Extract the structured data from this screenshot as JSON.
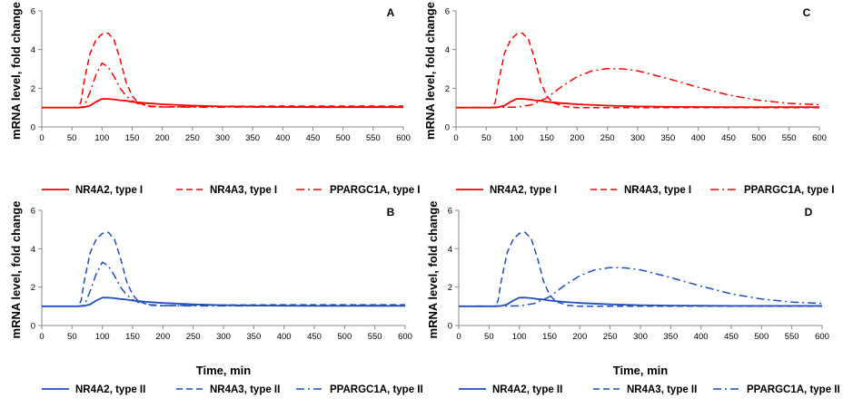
{
  "chart_data": [
    {
      "type": "line",
      "panel_label": "A",
      "ylabel": "mRNA level, fold change",
      "xlabel": "",
      "xlim": [
        0,
        600
      ],
      "ylim": [
        0,
        6
      ],
      "x_ticks": [
        "0",
        "50",
        "100",
        "150",
        "200",
        "250",
        "300",
        "350",
        "400",
        "450",
        "500",
        "550",
        "600"
      ],
      "y_ticks": [
        "0",
        "2",
        "4",
        "6"
      ],
      "grid": false,
      "legend_position": "bottom",
      "series": [
        {
          "name": "NR4A2, type I",
          "color": "#ff0000",
          "dash": "solid",
          "x": [
            0,
            60,
            70,
            80,
            90,
            100,
            110,
            120,
            130,
            140,
            150,
            175,
            200,
            250,
            300,
            350,
            400,
            450,
            500,
            550,
            600
          ],
          "values": [
            1.0,
            1.0,
            1.02,
            1.1,
            1.3,
            1.45,
            1.45,
            1.42,
            1.38,
            1.35,
            1.3,
            1.23,
            1.17,
            1.1,
            1.06,
            1.04,
            1.03,
            1.02,
            1.02,
            1.02,
            1.02
          ]
        },
        {
          "name": "NR4A3, type I",
          "color": "#ff0000",
          "dash": "dashed",
          "x": [
            0,
            60,
            65,
            70,
            80,
            90,
            100,
            110,
            120,
            130,
            140,
            150,
            160,
            180,
            200,
            250,
            300,
            400,
            500,
            600
          ],
          "values": [
            1.0,
            1.0,
            1.3,
            2.3,
            3.8,
            4.5,
            4.8,
            4.85,
            4.5,
            3.5,
            2.3,
            1.6,
            1.25,
            1.05,
            1.03,
            1.05,
            1.07,
            1.08,
            1.08,
            1.08
          ]
        },
        {
          "name": "PPARGC1A, type I",
          "color": "#ff0000",
          "dash": "dashdot",
          "x": [
            0,
            60,
            70,
            80,
            90,
            100,
            110,
            120,
            130,
            140,
            150,
            160,
            180,
            200,
            250,
            300,
            400,
            500,
            600
          ],
          "values": [
            1.0,
            1.0,
            1.05,
            1.8,
            2.7,
            3.3,
            3.1,
            2.6,
            2.0,
            1.6,
            1.35,
            1.2,
            1.08,
            1.04,
            1.02,
            1.02,
            1.03,
            1.04,
            1.05
          ]
        }
      ]
    },
    {
      "type": "line",
      "panel_label": "C",
      "ylabel": "mRNA level, fold change",
      "xlabel": "",
      "xlim": [
        0,
        600
      ],
      "ylim": [
        0,
        6
      ],
      "x_ticks": [
        "0",
        "50",
        "100",
        "150",
        "200",
        "250",
        "300",
        "350",
        "400",
        "450",
        "500",
        "550",
        "600"
      ],
      "y_ticks": [
        "0",
        "2",
        "4",
        "6"
      ],
      "grid": false,
      "legend_position": "bottom",
      "series": [
        {
          "name": "NR4A2, type I",
          "color": "#ff0000",
          "dash": "solid",
          "x": [
            0,
            60,
            70,
            80,
            90,
            100,
            110,
            120,
            130,
            140,
            150,
            175,
            200,
            250,
            300,
            350,
            400,
            450,
            500,
            550,
            600
          ],
          "values": [
            1.0,
            1.0,
            1.02,
            1.1,
            1.3,
            1.45,
            1.45,
            1.42,
            1.38,
            1.35,
            1.3,
            1.23,
            1.17,
            1.1,
            1.06,
            1.04,
            1.03,
            1.02,
            1.02,
            1.02,
            1.02
          ]
        },
        {
          "name": "NR4A3, type I",
          "color": "#ff0000",
          "dash": "dashed",
          "x": [
            0,
            60,
            65,
            70,
            80,
            90,
            100,
            110,
            120,
            130,
            140,
            150,
            160,
            180,
            200,
            250,
            300,
            400,
            500,
            600
          ],
          "values": [
            1.0,
            1.0,
            1.3,
            2.3,
            3.8,
            4.5,
            4.8,
            4.85,
            4.5,
            3.5,
            2.3,
            1.6,
            1.25,
            1.05,
            1.0,
            1.0,
            1.0,
            1.0,
            1.0,
            1.0
          ]
        },
        {
          "name": "PPARGC1A, type I",
          "color": "#ff0000",
          "dash": "dashdot",
          "x": [
            0,
            100,
            125,
            150,
            175,
            200,
            225,
            250,
            275,
            300,
            350,
            400,
            450,
            500,
            550,
            600
          ],
          "values": [
            1.0,
            1.02,
            1.15,
            1.5,
            2.1,
            2.6,
            2.9,
            3.02,
            3.0,
            2.9,
            2.5,
            2.05,
            1.65,
            1.38,
            1.22,
            1.15
          ]
        }
      ]
    },
    {
      "type": "line",
      "panel_label": "B",
      "ylabel": "mRNA level, fold change",
      "xlabel": "Time, min",
      "xlim": [
        0,
        600
      ],
      "ylim": [
        0,
        6
      ],
      "x_ticks": [
        "0",
        "50",
        "100",
        "150",
        "200",
        "250",
        "300",
        "350",
        "400",
        "450",
        "500",
        "550",
        "600"
      ],
      "y_ticks": [
        "0",
        "2",
        "4",
        "6"
      ],
      "grid": false,
      "legend_position": "bottom",
      "series": [
        {
          "name": "NR4A2, type II",
          "color": "#1f4fbf",
          "dash": "solid",
          "x": [
            0,
            60,
            70,
            80,
            90,
            100,
            110,
            120,
            130,
            140,
            150,
            175,
            200,
            250,
            300,
            350,
            400,
            450,
            500,
            550,
            600
          ],
          "values": [
            1.0,
            1.0,
            1.02,
            1.1,
            1.3,
            1.45,
            1.45,
            1.42,
            1.38,
            1.35,
            1.3,
            1.23,
            1.17,
            1.1,
            1.06,
            1.04,
            1.03,
            1.02,
            1.02,
            1.02,
            1.02
          ]
        },
        {
          "name": "NR4A3, type II",
          "color": "#1f4fbf",
          "dash": "dashed",
          "x": [
            0,
            60,
            65,
            70,
            80,
            90,
            100,
            110,
            120,
            130,
            140,
            150,
            160,
            180,
            200,
            250,
            300,
            400,
            500,
            600
          ],
          "values": [
            1.0,
            1.0,
            1.3,
            2.3,
            3.8,
            4.5,
            4.8,
            4.85,
            4.5,
            3.5,
            2.3,
            1.6,
            1.25,
            1.05,
            1.03,
            1.05,
            1.07,
            1.08,
            1.08,
            1.08
          ]
        },
        {
          "name": "PPARGC1A, type II",
          "color": "#1f4fbf",
          "dash": "dashdot",
          "x": [
            0,
            60,
            70,
            80,
            90,
            100,
            110,
            120,
            130,
            140,
            150,
            160,
            180,
            200,
            250,
            300,
            400,
            500,
            600
          ],
          "values": [
            1.0,
            1.0,
            1.05,
            1.8,
            2.7,
            3.3,
            3.1,
            2.6,
            2.0,
            1.6,
            1.35,
            1.2,
            1.08,
            1.04,
            1.02,
            1.02,
            1.03,
            1.04,
            1.05
          ]
        }
      ]
    },
    {
      "type": "line",
      "panel_label": "D",
      "ylabel": "mRNA level, fold change",
      "xlabel": "Time, min",
      "xlim": [
        0,
        600
      ],
      "ylim": [
        0,
        6
      ],
      "x_ticks": [
        "0",
        "50",
        "100",
        "150",
        "200",
        "250",
        "300",
        "350",
        "400",
        "450",
        "500",
        "550",
        "600"
      ],
      "y_ticks": [
        "0",
        "2",
        "4",
        "6"
      ],
      "grid": false,
      "legend_position": "bottom",
      "series": [
        {
          "name": "NR4A2, type II",
          "color": "#1f4fbf",
          "dash": "solid",
          "x": [
            0,
            60,
            70,
            80,
            90,
            100,
            110,
            120,
            130,
            140,
            150,
            175,
            200,
            250,
            300,
            350,
            400,
            450,
            500,
            550,
            600
          ],
          "values": [
            1.0,
            1.0,
            1.02,
            1.1,
            1.3,
            1.45,
            1.45,
            1.42,
            1.38,
            1.35,
            1.3,
            1.23,
            1.17,
            1.1,
            1.06,
            1.04,
            1.03,
            1.02,
            1.02,
            1.02,
            1.02
          ]
        },
        {
          "name": "NR4A3, type II",
          "color": "#1f4fbf",
          "dash": "dashed",
          "x": [
            0,
            60,
            65,
            70,
            80,
            90,
            100,
            110,
            120,
            130,
            140,
            150,
            160,
            180,
            200,
            250,
            300,
            400,
            500,
            600
          ],
          "values": [
            1.0,
            1.0,
            1.3,
            2.3,
            3.8,
            4.5,
            4.8,
            4.85,
            4.5,
            3.5,
            2.3,
            1.6,
            1.25,
            1.05,
            1.0,
            1.0,
            1.0,
            1.0,
            1.0,
            1.0
          ]
        },
        {
          "name": "PPARGC1A, type II",
          "color": "#1f4fbf",
          "dash": "dashdot",
          "x": [
            0,
            100,
            125,
            150,
            175,
            200,
            225,
            250,
            275,
            300,
            350,
            400,
            450,
            500,
            550,
            600
          ],
          "values": [
            1.0,
            1.02,
            1.15,
            1.5,
            2.1,
            2.6,
            2.9,
            3.02,
            3.0,
            2.9,
            2.5,
            2.05,
            1.65,
            1.38,
            1.22,
            1.15
          ]
        }
      ]
    }
  ]
}
